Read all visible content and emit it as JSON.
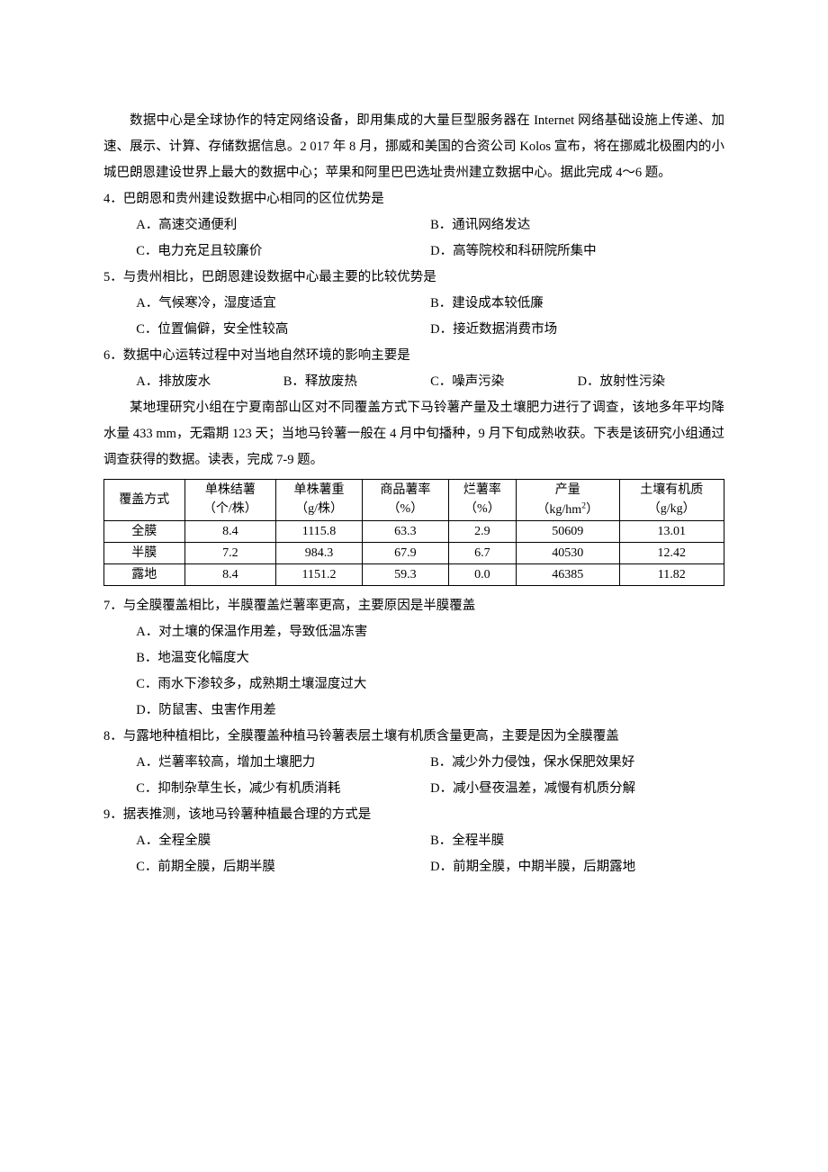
{
  "passage1": "数据中心是全球协作的特定网络设备，即用集成的大量巨型服务器在 Internet 网络基础设施上传递、加速、展示、计算、存储数据信息。2 017 年 8 月，挪威和美国的合资公司 Kolos 宣布，将在挪威北极圈内的小城巴朗恩建设世界上最大的数据中心；苹果和阿里巴巴选址贵州建立数据中心。据此完成 4～6 题。",
  "q4": "4．巴朗恩和贵州建设数据中心相同的区位优势是",
  "q4a": "A．高速交通便利",
  "q4b": "B．通讯网络发达",
  "q4c": "C．电力充足且较廉价",
  "q4d": "D．高等院校和科研院所集中",
  "q5": "5．与贵州相比，巴朗恩建设数据中心最主要的比较优势是",
  "q5a": "A．气候寒冷，湿度适宜",
  "q5b": "B．建设成本较低廉",
  "q5c": "C．位置偏僻，安全性较高",
  "q5d": "D．接近数据消费市场",
  "q6": "6．数据中心运转过程中对当地自然环境的影响主要是",
  "q6a": "A．排放废水",
  "q6b": "B．释放废热",
  "q6c": "C．噪声污染",
  "q6d": "D．放射性污染",
  "passage2": "某地理研究小组在宁夏南部山区对不同覆盖方式下马铃薯产量及土壤肥力进行了调查，该地多年平均降水量 433 mm，无霜期 123 天；当地马铃薯一般在 4 月中旬播种，9 月下旬成熟收获。下表是该研究小组通过调查获得的数据。读表，完成 7-9 题。",
  "table": {
    "columns": [
      {
        "l1": "覆盖方式",
        "l2": ""
      },
      {
        "l1": "单株结薯",
        "l2": "（个/株）"
      },
      {
        "l1": "单株薯重",
        "l2": "（g/株）"
      },
      {
        "l1": "商品薯率",
        "l2": "（%）"
      },
      {
        "l1": "烂薯率",
        "l2": "（%）"
      },
      {
        "l1": "产量",
        "l2_pre": "（kg/hm",
        "l2_sup": "2",
        "l2_post": "）"
      },
      {
        "l1": "土壤有机质",
        "l2": "（g/kg）"
      }
    ],
    "rows": [
      [
        "全膜",
        "8.4",
        "1115.8",
        "63.3",
        "2.9",
        "50609",
        "13.01"
      ],
      [
        "半膜",
        "7.2",
        "984.3",
        "67.9",
        "6.7",
        "40530",
        "12.42"
      ],
      [
        "露地",
        "8.4",
        "1151.2",
        "59.3",
        "0.0",
        "46385",
        "11.82"
      ]
    ]
  },
  "q7": "7．与全膜覆盖相比，半膜覆盖烂薯率更高，主要原因是半膜覆盖",
  "q7a": "A．对土壤的保温作用差，导致低温冻害",
  "q7b": "B．地温变化幅度大",
  "q7c": "C．雨水下渗较多，成熟期土壤湿度过大",
  "q7d": "D．防鼠害、虫害作用差",
  "q8": "8．与露地种植相比，全膜覆盖种植马铃薯表层土壤有机质含量更高，主要是因为全膜覆盖",
  "q8a": "A．烂薯率较高，增加土壤肥力",
  "q8b": "B．减少外力侵蚀，保水保肥效果好",
  "q8c": "C．抑制杂草生长，减少有机质消耗",
  "q8d": "D．减小昼夜温差，减慢有机质分解",
  "q9": "9．据表推测，该地马铃薯种植最合理的方式是",
  "q9a": "A．全程全膜",
  "q9b": "B．全程半膜",
  "q9c": "C．前期全膜，后期半膜",
  "q9d": "D．前期全膜，中期半膜，后期露地"
}
